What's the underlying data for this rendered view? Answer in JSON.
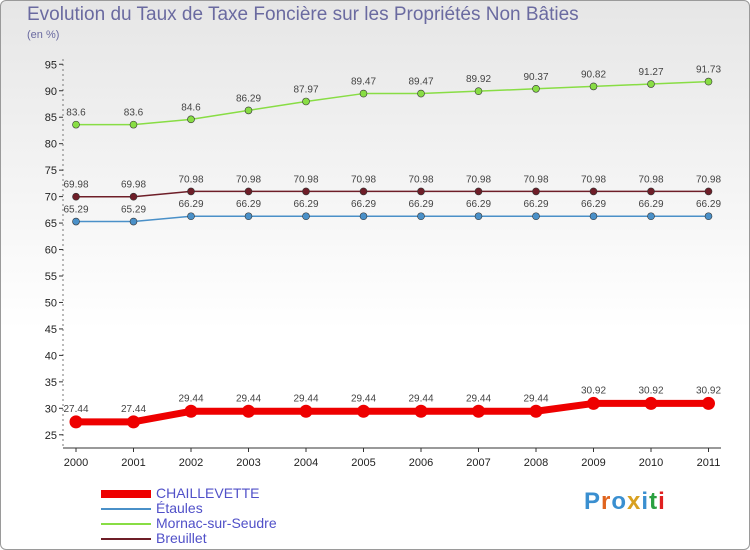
{
  "header": {
    "title": "Evolution du Taux de Taxe Foncière sur les Propriétés Non Bâties",
    "subtitle": "(en %)"
  },
  "logo": {
    "text": "Proxiti",
    "letter_colors": [
      "#3a8fd0",
      "#e0641e",
      "#3a8fd0",
      "#d8a020",
      "#3a8fd0",
      "#2aa040",
      "#e02020"
    ]
  },
  "chart_data": {
    "type": "line",
    "title": "Evolution du Taux de Taxe Foncière sur les Propriétés Non Bâties",
    "ylabel": "(en %)",
    "xlabel": "",
    "categories": [
      "2000",
      "2001",
      "2002",
      "2003",
      "2004",
      "2005",
      "2006",
      "2007",
      "2008",
      "2009",
      "2010",
      "2011"
    ],
    "ylim": [
      22.5,
      96
    ],
    "yticks": [
      25,
      30,
      35,
      40,
      45,
      50,
      55,
      60,
      65,
      70,
      75,
      80,
      85,
      90,
      95
    ],
    "grid": false,
    "legend_position": "bottom-left",
    "series": [
      {
        "name": "CHAILLEVETTE",
        "color": "#ee0000",
        "width": "thick",
        "values": [
          27.44,
          27.44,
          29.44,
          29.44,
          29.44,
          29.44,
          29.44,
          29.44,
          29.44,
          30.92,
          30.92,
          30.92
        ],
        "labels": [
          "27.44",
          "27.44",
          "29.44",
          "29.44",
          "29.44",
          "29.44",
          "29.44",
          "29.44",
          "29.44",
          "30.92",
          "30.92",
          "30.92"
        ]
      },
      {
        "name": "Étaules",
        "color": "#4a90c8",
        "width": "thin",
        "values": [
          65.29,
          65.29,
          66.29,
          66.29,
          66.29,
          66.29,
          66.29,
          66.29,
          66.29,
          66.29,
          66.29,
          66.29
        ],
        "labels": [
          "65.29",
          "65.29",
          "66.29",
          "66.29",
          "66.29",
          "66.29",
          "66.29",
          "66.29",
          "66.29",
          "66.29",
          "66.29",
          "66.29"
        ]
      },
      {
        "name": "Mornac-sur-Seudre",
        "color": "#88dd44",
        "width": "thin",
        "values": [
          83.6,
          83.6,
          84.6,
          86.29,
          87.97,
          89.47,
          89.47,
          89.92,
          90.37,
          90.82,
          91.27,
          91.73
        ],
        "labels": [
          "83.6",
          "83.6",
          "84.6",
          "86.29",
          "87.97",
          "89.47",
          "89.47",
          "89.92",
          "90.37",
          "90.82",
          "91.27",
          "91.73"
        ]
      },
      {
        "name": "Breuillet",
        "color": "#6e1e28",
        "width": "thin",
        "values": [
          69.98,
          69.98,
          70.98,
          70.98,
          70.98,
          70.98,
          70.98,
          70.98,
          70.98,
          70.98,
          70.98,
          70.98
        ],
        "labels": [
          "69.98",
          "69.98",
          "70.98",
          "70.98",
          "70.98",
          "70.98",
          "70.98",
          "70.98",
          "70.98",
          "70.98",
          "70.98",
          "70.98"
        ]
      }
    ]
  }
}
